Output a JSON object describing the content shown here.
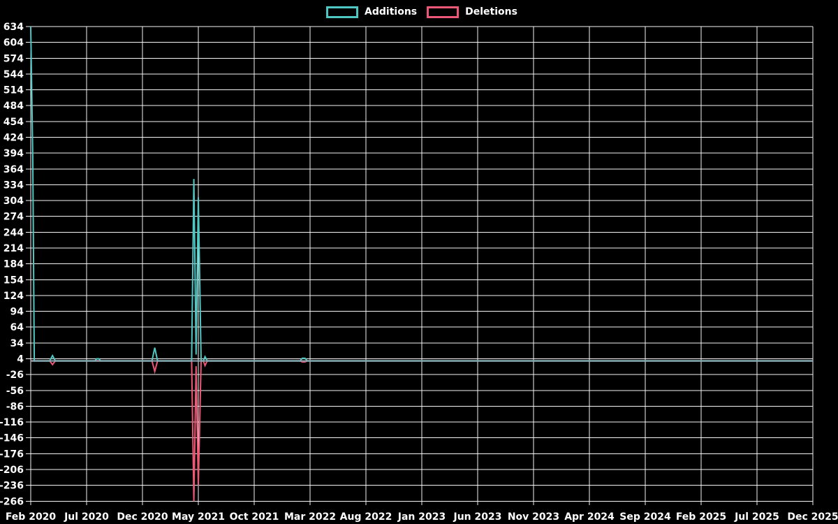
{
  "page": {
    "background": "#000000",
    "text_color": "#ffffff"
  },
  "legend": {
    "items": [
      {
        "label": "Additions",
        "color": "#4FC8C4"
      },
      {
        "label": "Deletions",
        "color": "#EE5877"
      }
    ]
  },
  "chart_data": {
    "type": "line",
    "title": "",
    "xlabel": "",
    "ylabel": "",
    "legend_position": "top-center",
    "grid": true,
    "colors": {
      "grid": "#f5f5f5",
      "zero_line": "#93A9B3",
      "tick_text": "#ffffff",
      "additions": "#4FC8C4",
      "deletions": "#EE5877"
    },
    "y_max": 634,
    "y_min": -266,
    "y_tick_step": 30,
    "y_ticks": [
      634,
      604,
      574,
      544,
      514,
      484,
      454,
      424,
      394,
      364,
      334,
      304,
      274,
      244,
      214,
      184,
      154,
      124,
      94,
      64,
      34,
      4,
      -26,
      -56,
      -86,
      -116,
      -146,
      -176,
      -206,
      -236,
      -266
    ],
    "x_ticks": [
      "Feb 2020",
      "Jul 2020",
      "Dec 2020",
      "May 2021",
      "Oct 2021",
      "Mar 2022",
      "Aug 2022",
      "Jan 2023",
      "Jun 2023",
      "Nov 2023",
      "Apr 2024",
      "Sep 2024",
      "Feb 2025",
      "Jul 2025",
      "Dec 2025"
    ],
    "x_total_months": 70,
    "x_unit": "months since Feb 2020",
    "series": [
      {
        "name": "Additions",
        "color": "#4FC8C4",
        "points": [
          [
            0,
            634
          ],
          [
            0.18,
            390
          ],
          [
            0.32,
            0
          ],
          [
            1.7,
            0
          ],
          [
            1.95,
            10
          ],
          [
            2.2,
            0
          ],
          [
            5.75,
            0
          ],
          [
            5.9,
            4
          ],
          [
            6.1,
            4
          ],
          [
            6.25,
            0
          ],
          [
            10.85,
            0
          ],
          [
            11.1,
            25
          ],
          [
            11.35,
            0
          ],
          [
            14.4,
            0
          ],
          [
            14.6,
            345
          ],
          [
            14.8,
            12
          ],
          [
            15.0,
            310
          ],
          [
            15.25,
            0
          ],
          [
            15.45,
            0
          ],
          [
            15.6,
            8
          ],
          [
            15.8,
            0
          ],
          [
            24.1,
            0
          ],
          [
            24.3,
            5
          ],
          [
            24.55,
            5
          ],
          [
            24.75,
            0
          ],
          [
            70,
            0
          ]
        ]
      },
      {
        "name": "Deletions",
        "color": "#EE5877",
        "points": [
          [
            0,
            0
          ],
          [
            1.7,
            0
          ],
          [
            1.95,
            -7
          ],
          [
            2.2,
            0
          ],
          [
            10.85,
            0
          ],
          [
            11.1,
            -20
          ],
          [
            11.35,
            0
          ],
          [
            14.4,
            0
          ],
          [
            14.6,
            -266
          ],
          [
            14.8,
            -10
          ],
          [
            15.0,
            -236
          ],
          [
            15.25,
            0
          ],
          [
            15.45,
            0
          ],
          [
            15.6,
            -9
          ],
          [
            15.8,
            0
          ],
          [
            24.1,
            0
          ],
          [
            24.3,
            -2
          ],
          [
            24.55,
            -2
          ],
          [
            24.75,
            0
          ],
          [
            70,
            0
          ]
        ]
      }
    ]
  }
}
